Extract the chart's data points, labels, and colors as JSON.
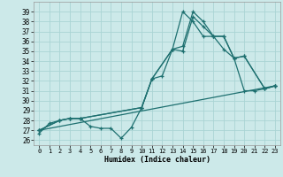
{
  "xlabel": "Humidex (Indice chaleur)",
  "xlim": [
    -0.5,
    23.5
  ],
  "ylim": [
    25.5,
    40
  ],
  "yticks": [
    26,
    27,
    28,
    29,
    30,
    31,
    32,
    33,
    34,
    35,
    36,
    37,
    38,
    39
  ],
  "xticks": [
    0,
    1,
    2,
    3,
    4,
    5,
    6,
    7,
    8,
    9,
    10,
    11,
    12,
    13,
    14,
    15,
    16,
    17,
    18,
    19,
    20,
    21,
    22,
    23
  ],
  "bg_color": "#cce9e9",
  "grid_color": "#aad4d4",
  "line_color": "#1e7070",
  "series": [
    {
      "x": [
        0,
        1,
        2,
        3,
        4,
        5,
        6,
        7,
        8,
        9,
        10,
        11,
        12,
        13,
        14,
        15,
        16,
        17,
        18,
        19,
        20,
        21,
        22,
        23
      ],
      "y": [
        26.7,
        27.7,
        28.0,
        28.2,
        28.2,
        27.4,
        27.2,
        27.2,
        26.2,
        27.3,
        29.3,
        32.2,
        32.5,
        35.2,
        39.0,
        38.0,
        36.5,
        36.5,
        35.2,
        34.3,
        31.0,
        31.0,
        31.2,
        31.5
      ]
    },
    {
      "x": [
        0,
        2,
        3,
        4,
        10,
        11,
        13,
        14,
        15,
        16,
        17,
        18,
        19,
        20,
        22,
        23
      ],
      "y": [
        27.0,
        28.0,
        28.2,
        28.2,
        29.3,
        32.2,
        35.2,
        35.5,
        39.0,
        38.0,
        36.5,
        36.5,
        34.3,
        34.5,
        31.2,
        31.5
      ]
    },
    {
      "x": [
        0,
        2,
        3,
        4,
        10,
        11,
        13,
        14,
        15,
        16,
        17,
        18,
        19,
        20,
        22,
        23
      ],
      "y": [
        27.0,
        28.0,
        28.2,
        28.2,
        29.3,
        32.2,
        35.2,
        35.0,
        38.5,
        37.5,
        36.5,
        36.5,
        34.3,
        34.5,
        31.2,
        31.5
      ]
    },
    {
      "x": [
        0,
        23
      ],
      "y": [
        27.0,
        31.5
      ]
    }
  ]
}
